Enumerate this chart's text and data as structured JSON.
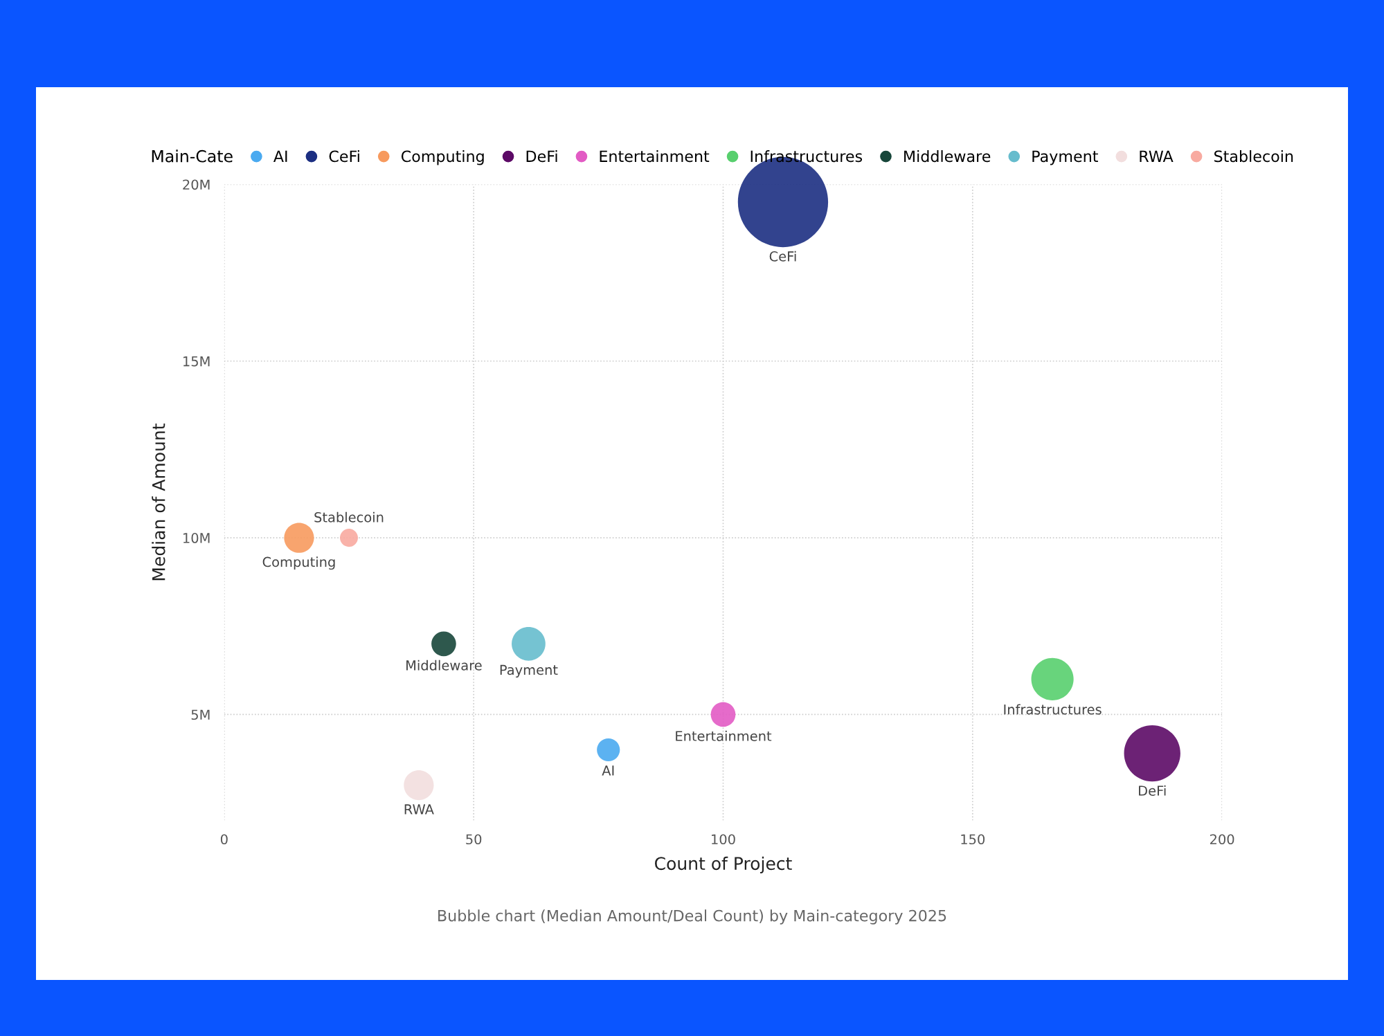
{
  "chart_data": {
    "type": "bubble",
    "xlabel": "Count of Project",
    "ylabel": "Median of Amount",
    "legend_title": "Main-Cate",
    "legend": "top",
    "grid": true,
    "xlim": [
      0,
      200
    ],
    "xticks": [
      0,
      50,
      100,
      150,
      200
    ],
    "ylim": [
      2000000,
      20000000
    ],
    "yticks": [
      {
        "value": 5000000,
        "label": "5M"
      },
      {
        "value": 10000000,
        "label": "10M"
      },
      {
        "value": 15000000,
        "label": "15M"
      },
      {
        "value": 20000000,
        "label": "20M"
      }
    ],
    "annotations": [
      "Bubble chart (Median Amount/Deal Count) by Main-category 2025"
    ],
    "series": [
      {
        "name": "AI",
        "color": "#4aaaf0",
        "x": [
          77
        ],
        "values": [
          4000000
        ],
        "sizes": [
          0.065
        ]
      },
      {
        "name": "CeFi",
        "color": "#1c2f82",
        "x": [
          112
        ],
        "values": [
          19500000
        ],
        "sizes": [
          1
        ]
      },
      {
        "name": "Computing",
        "color": "#f79a5e",
        "x": [
          15
        ],
        "values": [
          10000000
        ],
        "sizes": [
          0.11
        ]
      },
      {
        "name": "DeFi",
        "color": "#5c0a66",
        "x": [
          186
        ],
        "values": [
          3900000
        ],
        "sizes": [
          0.39
        ]
      },
      {
        "name": "Entertainment",
        "color": "#e25bc4",
        "x": [
          100
        ],
        "values": [
          5000000
        ],
        "sizes": [
          0.075
        ]
      },
      {
        "name": "Infrastructures",
        "color": "#58cf6e",
        "x": [
          166
        ],
        "values": [
          6000000
        ],
        "sizes": [
          0.22
        ]
      },
      {
        "name": "Middleware",
        "color": "#17463a",
        "x": [
          44
        ],
        "values": [
          7000000
        ],
        "sizes": [
          0.075
        ]
      },
      {
        "name": "Payment",
        "color": "#66bccd",
        "x": [
          61
        ],
        "values": [
          7000000
        ],
        "sizes": [
          0.14
        ]
      },
      {
        "name": "RWA",
        "color": "#f2dede",
        "x": [
          39
        ],
        "values": [
          3000000
        ],
        "sizes": [
          0.11
        ]
      },
      {
        "name": "Stablecoin",
        "color": "#f8aaa0",
        "x": [
          25
        ],
        "values": [
          10000000
        ],
        "sizes": [
          0.04
        ]
      }
    ]
  }
}
